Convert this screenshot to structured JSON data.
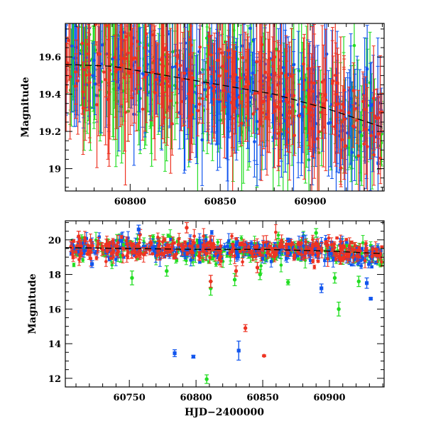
{
  "chart_data": [
    {
      "type": "scatter",
      "title": "",
      "xlabel": "",
      "ylabel": "Magnitude",
      "xlim": [
        60764,
        60941
      ],
      "ylim": [
        19.78,
        18.88
      ],
      "y_inverted": true,
      "xticks": [
        60800,
        60850,
        60900
      ],
      "yticks": [
        19,
        19.2,
        19.4,
        19.6
      ],
      "ytick_labels": [
        "19",
        "19.2",
        "19.4",
        "19.6"
      ],
      "grid": false,
      "legend": "none",
      "series": [
        {
          "color": "#22dd22",
          "marker": "circle",
          "error_bars": true
        },
        {
          "color": "#1155ee",
          "marker": "circle",
          "error_bars": true
        },
        {
          "color": "#ee3322",
          "marker": "circle",
          "error_bars": true
        }
      ],
      "trend": {
        "style": "dashed",
        "color": "#000000",
        "x": [
          60764,
          60790,
          60820,
          60850,
          60880,
          60910,
          60941
        ],
        "y": [
          19.56,
          19.55,
          19.5,
          19.45,
          19.4,
          19.32,
          19.22
        ]
      },
      "band": {
        "x": [
          60764,
          60790,
          60820,
          60850,
          60880,
          60910,
          60941
        ],
        "y": [
          19.56,
          19.55,
          19.5,
          19.45,
          19.4,
          19.32,
          19.22
        ],
        "scatter": 0.12,
        "err_min": 0.1,
        "err_max": 0.4,
        "points_per_series": 260
      }
    },
    {
      "type": "scatter",
      "title": "",
      "xlabel": "HJD−2400000",
      "ylabel": "Magnitude",
      "xlim": [
        60702,
        60941
      ],
      "ylim": [
        21.1,
        11.5
      ],
      "y_inverted": true,
      "xticks": [
        60750,
        60800,
        60850,
        60900
      ],
      "yticks": [
        12,
        14,
        16,
        18,
        20
      ],
      "ytick_labels": [
        "12",
        "14",
        "16",
        "18",
        "20"
      ],
      "grid": false,
      "legend": "none",
      "series": [
        {
          "color": "#22dd22",
          "marker": "circle",
          "error_bars": true
        },
        {
          "color": "#1155ee",
          "marker": "square",
          "error_bars": true
        },
        {
          "color": "#ee3322",
          "marker": "circle",
          "error_bars": true
        }
      ],
      "trend": {
        "style": "dashed",
        "color": "#000000",
        "x": [
          60702,
          60750,
          60800,
          60850,
          60900,
          60941
        ],
        "y": [
          19.55,
          19.5,
          19.45,
          19.45,
          19.35,
          19.2
        ]
      },
      "band": {
        "x": [
          60702,
          60750,
          60800,
          60850,
          60900,
          60941
        ],
        "y": [
          19.55,
          19.5,
          19.45,
          19.45,
          19.35,
          19.2
        ],
        "scatter": 0.32,
        "err_min": 0.05,
        "err_max": 0.45,
        "points_per_series": 330
      },
      "outliers": [
        {
          "series": 0,
          "x": 60808,
          "y": 11.95,
          "err": 0.25
        },
        {
          "series": 1,
          "x": 60784,
          "y": 13.45,
          "err": 0.2
        },
        {
          "series": 1,
          "x": 60798,
          "y": 13.25,
          "err": 0.08
        },
        {
          "series": 1,
          "x": 60832,
          "y": 13.6,
          "err": 0.55
        },
        {
          "series": 2,
          "x": 60851,
          "y": 13.3,
          "err": 0.05
        },
        {
          "series": 2,
          "x": 60837,
          "y": 14.9,
          "err": 0.2
        },
        {
          "series": 0,
          "x": 60907,
          "y": 16.0,
          "err": 0.4
        },
        {
          "series": 1,
          "x": 60931,
          "y": 16.6,
          "err": 0.05
        },
        {
          "series": 0,
          "x": 60811,
          "y": 17.2,
          "err": 0.4
        },
        {
          "series": 2,
          "x": 60811,
          "y": 17.6,
          "err": 0.35
        },
        {
          "series": 1,
          "x": 60894,
          "y": 17.2,
          "err": 0.25
        },
        {
          "series": 1,
          "x": 60928,
          "y": 17.5,
          "err": 0.3
        },
        {
          "series": 0,
          "x": 60752,
          "y": 17.8,
          "err": 0.4
        },
        {
          "series": 0,
          "x": 60829,
          "y": 17.7,
          "err": 0.35
        },
        {
          "series": 0,
          "x": 60848,
          "y": 18.0,
          "err": 0.3
        },
        {
          "series": 0,
          "x": 60869,
          "y": 17.55,
          "err": 0.15
        },
        {
          "series": 0,
          "x": 60904,
          "y": 17.8,
          "err": 0.3
        },
        {
          "series": 0,
          "x": 60922,
          "y": 17.6,
          "err": 0.3
        },
        {
          "series": 1,
          "x": 60722,
          "y": 18.6,
          "err": 0.2
        },
        {
          "series": 2,
          "x": 60830,
          "y": 18.2,
          "err": 0.3
        },
        {
          "series": 2,
          "x": 60846,
          "y": 18.4,
          "err": 0.3
        },
        {
          "series": 0,
          "x": 60778,
          "y": 18.2,
          "err": 0.3
        },
        {
          "series": 2,
          "x": 60758,
          "y": 20.3,
          "err": 0.3
        },
        {
          "series": 2,
          "x": 60712,
          "y": 20.2,
          "err": 0.3
        },
        {
          "series": 2,
          "x": 60793,
          "y": 20.7,
          "err": 0.3
        },
        {
          "series": 0,
          "x": 60890,
          "y": 20.4,
          "err": 0.25
        },
        {
          "series": 1,
          "x": 60757,
          "y": 20.6,
          "err": 0.25
        }
      ]
    }
  ]
}
